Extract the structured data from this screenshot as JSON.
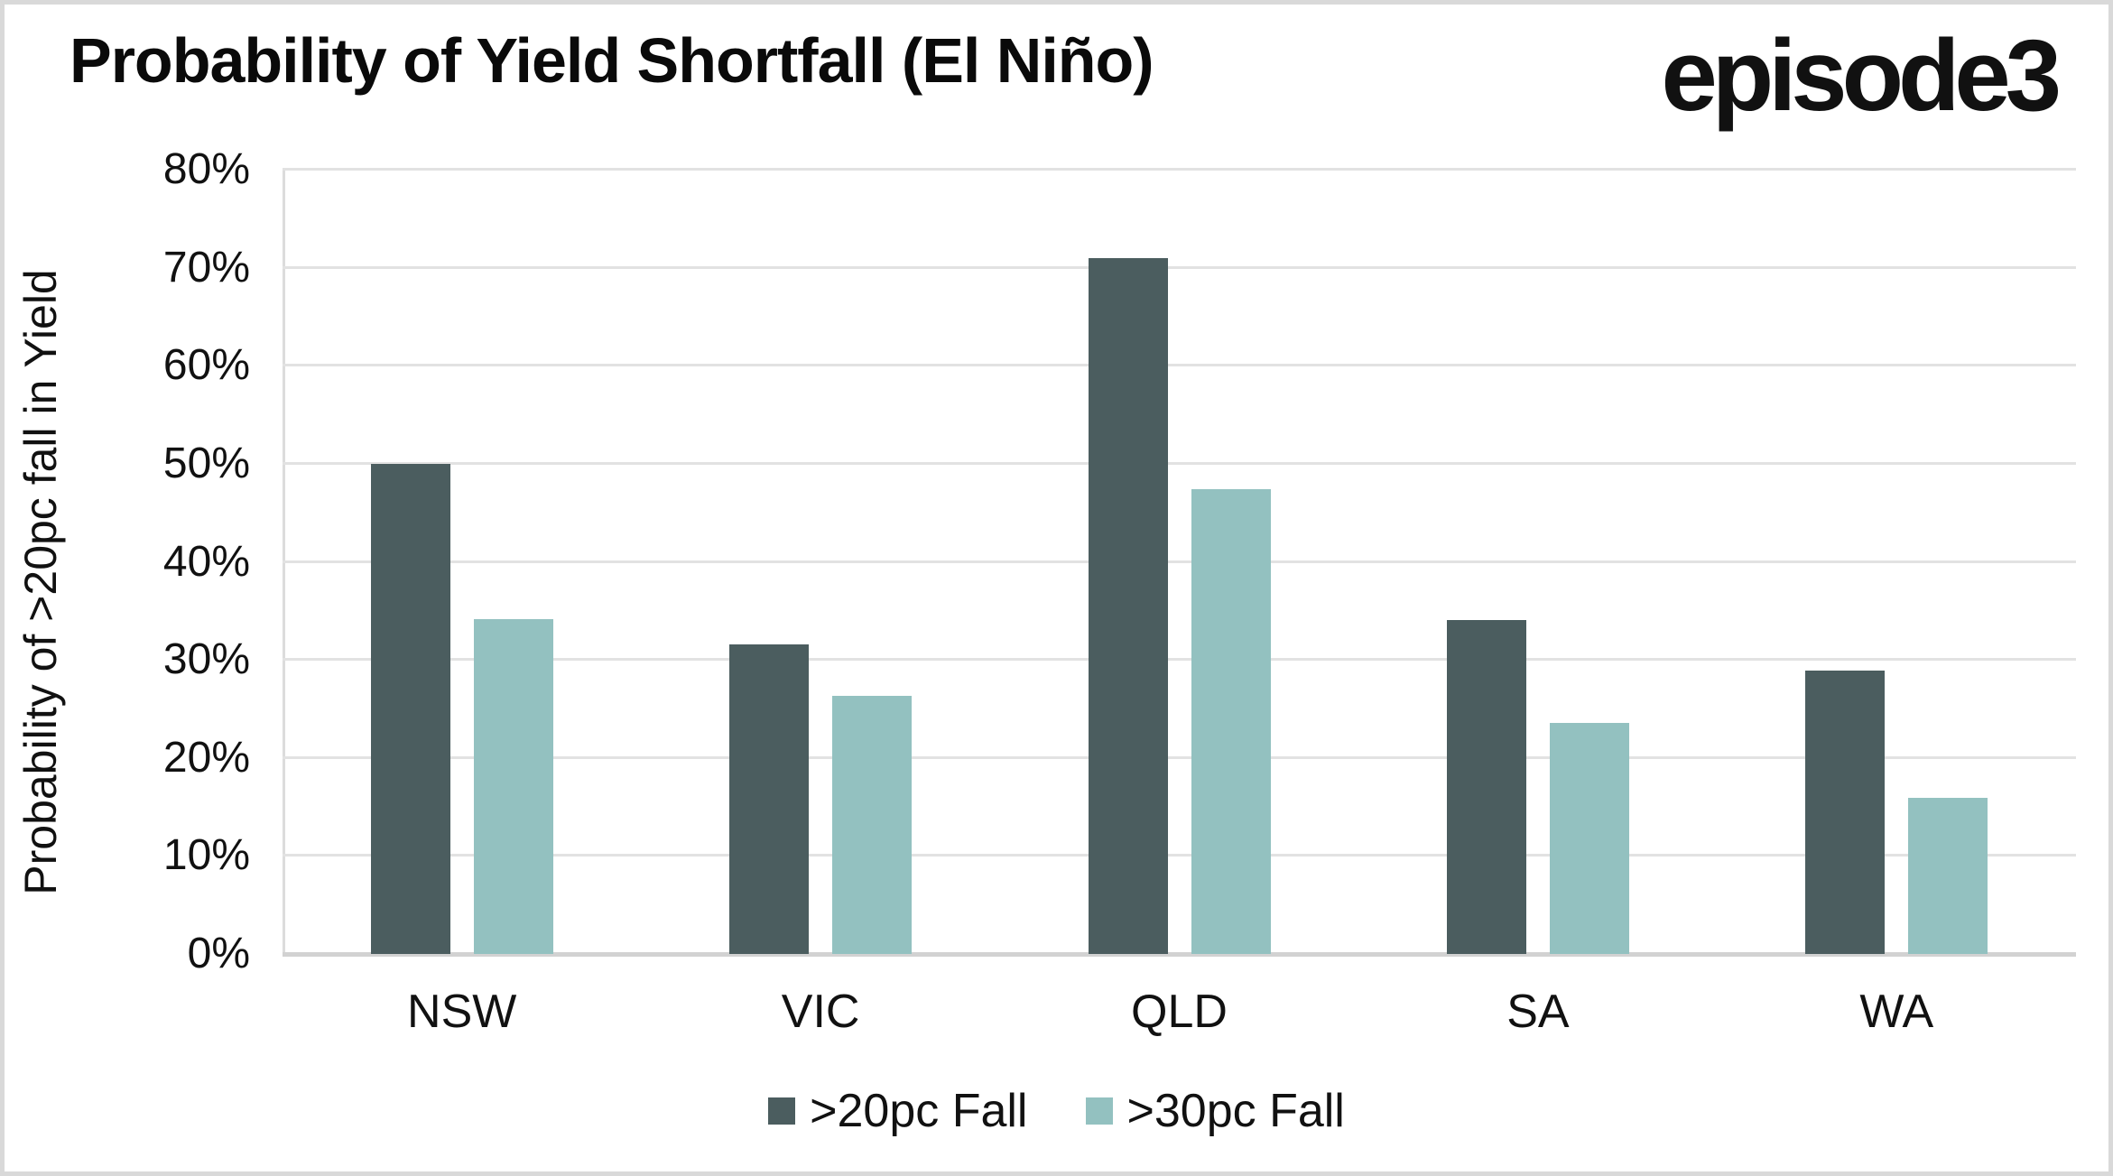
{
  "header": {
    "title": "Probability of Yield Shortfall (El Niño)",
    "logo": "episode3"
  },
  "colors": {
    "series_dark": "#4b5d5f",
    "series_light": "#93c1c0",
    "gridline": "#e2e2e2",
    "baseline": "#d2d2d2",
    "frame_border": "#d9d9d9",
    "text": "#111111",
    "background": "#ffffff"
  },
  "chart_data": {
    "type": "bar",
    "title": "Probability of Yield Shortfall (El Niño)",
    "xlabel": "",
    "ylabel": "Probability of >20pc fall in Yield",
    "categories": [
      "NSW",
      "VIC",
      "QLD",
      "SA",
      "WA"
    ],
    "series": [
      {
        "name": ">20pc Fall",
        "color": "#4b5d5f",
        "values": [
          50.0,
          31.6,
          71.0,
          34.1,
          28.9
        ]
      },
      {
        "name": ">30pc Fall",
        "color": "#93c1c0",
        "values": [
          34.2,
          26.3,
          47.4,
          23.6,
          15.9
        ]
      }
    ],
    "ylim": [
      0,
      80
    ],
    "ytick_step": 10,
    "ytick_format": "percent",
    "ytick_labels": [
      "0%",
      "10%",
      "20%",
      "30%",
      "40%",
      "50%",
      "60%",
      "70%",
      "80%"
    ],
    "grid": true,
    "legend_position": "bottom-center"
  }
}
